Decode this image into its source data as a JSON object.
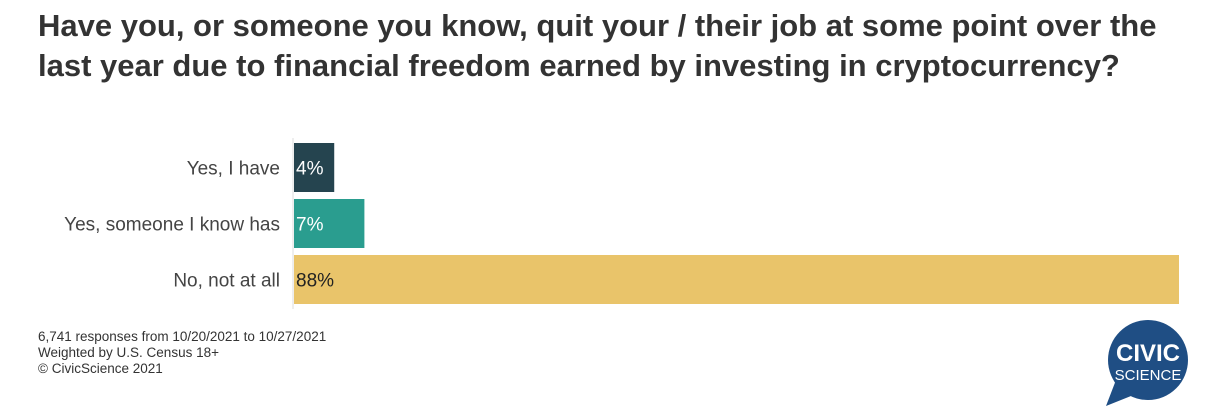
{
  "chart_data": {
    "type": "bar",
    "orientation": "horizontal",
    "title": "Have you, or someone you know, quit your / their job at some point over the last year due to financial freedom earned by investing in cryptocurrency?",
    "categories": [
      "Yes, I have",
      "Yes, someone I know has",
      "No, not at all"
    ],
    "values": [
      4,
      7,
      88
    ],
    "data_labels": [
      "4%",
      "7%",
      "88%"
    ],
    "colors": [
      "#25444f",
      "#2a9d8f",
      "#e9c46a"
    ],
    "label_colors": [
      "#ffffff",
      "#ffffff",
      "#222222"
    ],
    "xlim": [
      0,
      88
    ],
    "grid": false
  },
  "notes": [
    "6,741 responses from 10/20/2021 to 10/27/2021",
    "Weighted by U.S. Census 18+",
    "© CivicScience 2021"
  ],
  "logo": {
    "line1": "CIVIC",
    "line2": "SCIENCE",
    "color": "#1f4e84"
  }
}
